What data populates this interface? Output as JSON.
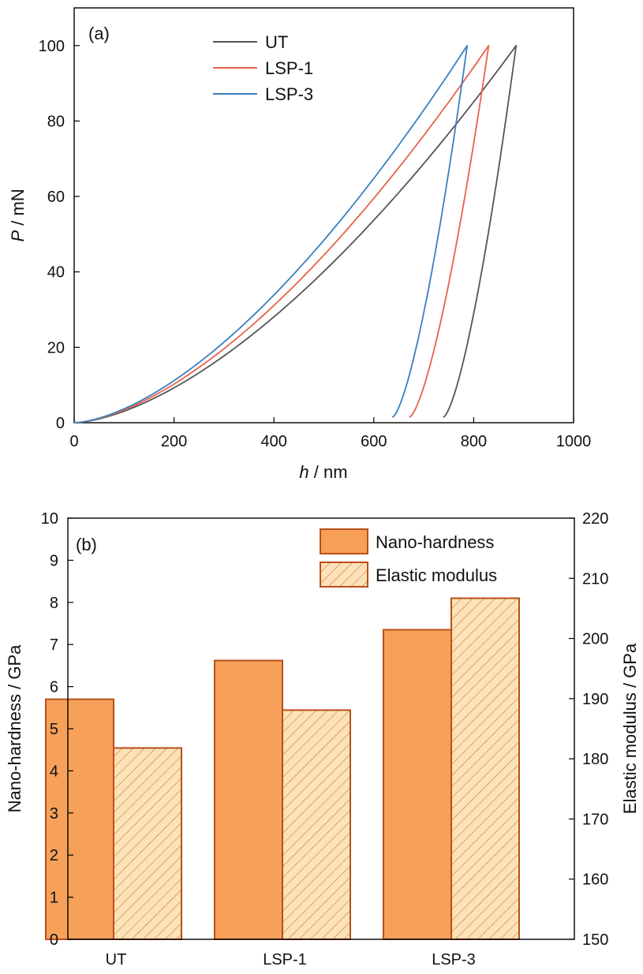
{
  "chart_data": [
    {
      "type": "line",
      "panel_label": "(a)",
      "xlabel_var": "h",
      "xlabel_unit": " / nm",
      "ylabel_var": "P",
      "ylabel_unit": " / mN",
      "xlim": [
        0,
        1000
      ],
      "ylim": [
        0,
        110
      ],
      "xticks": [
        0,
        200,
        400,
        600,
        800,
        1000
      ],
      "yticks": [
        0,
        20,
        40,
        60,
        80,
        100
      ],
      "xtick_labels": [
        "0",
        "200",
        "400",
        "600",
        "800",
        "1000"
      ],
      "ytick_labels": [
        "0",
        "20",
        "40",
        "60",
        "80",
        "100"
      ],
      "grid": false,
      "legend_position": "top-center",
      "series": [
        {
          "name": "UT",
          "color": "#555555",
          "loading": {
            "h_max": 885,
            "P_max": 100,
            "exponent": 1.6
          },
          "unloading": {
            "h_start": 885,
            "h_end": 740,
            "P_end": 1.5
          }
        },
        {
          "name": "LSP-1",
          "color": "#e8624a",
          "loading": {
            "h_max": 830,
            "P_max": 100,
            "exponent": 1.6
          },
          "unloading": {
            "h_start": 830,
            "h_end": 672,
            "P_end": 1.5
          }
        },
        {
          "name": "LSP-3",
          "color": "#3a7fc0",
          "loading": {
            "h_max": 787,
            "P_max": 100,
            "exponent": 1.6
          },
          "unloading": {
            "h_start": 787,
            "h_end": 638,
            "P_end": 1.5
          }
        }
      ]
    },
    {
      "type": "bar",
      "panel_label": "(b)",
      "categories": [
        "UT",
        "LSP-1",
        "LSP-3"
      ],
      "ylabel_left": "Nano-hardness / GPa",
      "ylabel_right": "Elastic modulus / GPa",
      "ylim_left": [
        0,
        10
      ],
      "ylim_right": [
        150,
        220
      ],
      "yticks_left": [
        0,
        1,
        2,
        3,
        4,
        5,
        6,
        7,
        8,
        9,
        10
      ],
      "yticks_right": [
        150,
        160,
        170,
        180,
        190,
        200,
        210,
        220
      ],
      "ytick_labels_left": [
        "0",
        "1",
        "2",
        "3",
        "4",
        "5",
        "6",
        "7",
        "8",
        "9",
        "10"
      ],
      "ytick_labels_right": [
        "150",
        "160",
        "170",
        "180",
        "190",
        "200",
        "210",
        "220"
      ],
      "grid": false,
      "legend_position": "top-right",
      "series": [
        {
          "name": "Nano-hardness",
          "axis": "left",
          "values": [
            5.7,
            6.62,
            7.35
          ],
          "fill": "#f6a05a",
          "edge": "#b8501a",
          "pattern": "solid"
        },
        {
          "name": "Elastic modulus",
          "axis": "right",
          "values": [
            181.8,
            188.1,
            206.7
          ],
          "fill": "#fde2b8",
          "edge": "#b8501a",
          "pattern": "hatch"
        }
      ]
    }
  ]
}
